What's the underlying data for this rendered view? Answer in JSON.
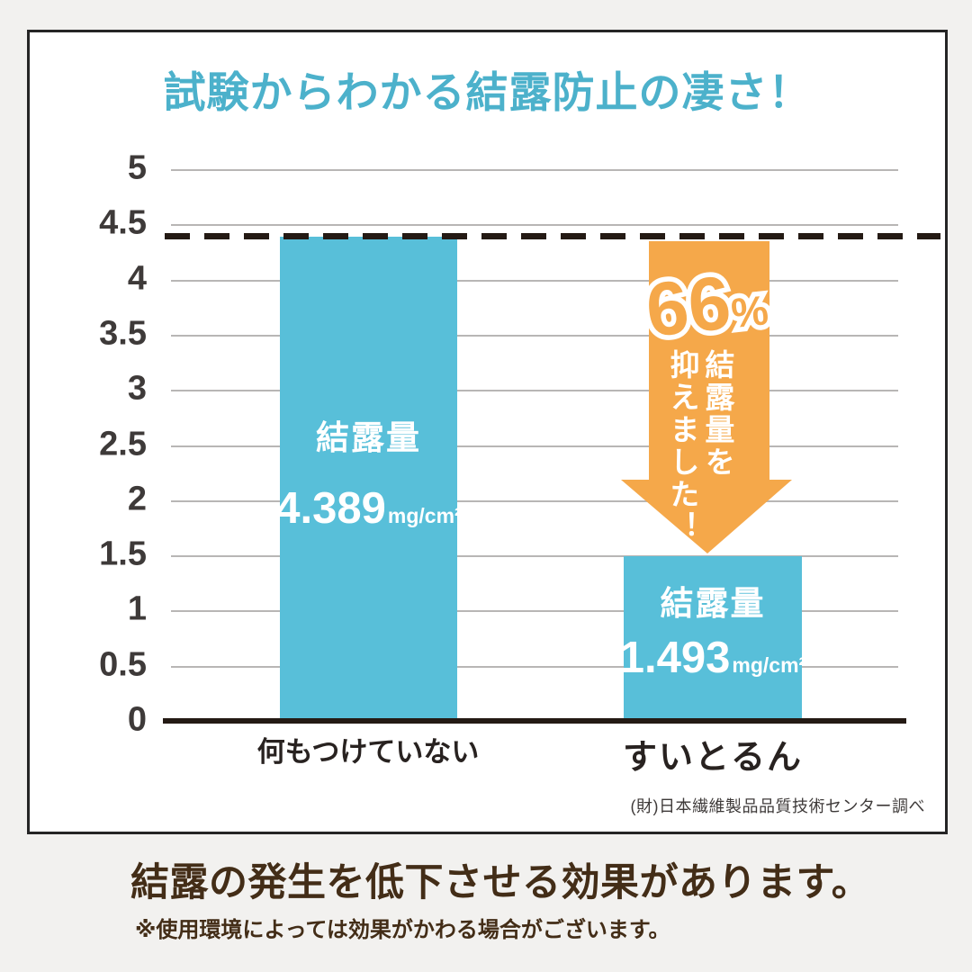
{
  "title": "試験からわかる結露防止の凄さ！",
  "chart_data": {
    "type": "bar",
    "title": "試験からわかる結露防止の凄さ！",
    "categories": [
      "何もつけていない",
      "すいとるん"
    ],
    "values": [
      4.389,
      1.493
    ],
    "bar_value_labels": [
      {
        "label": "結露量",
        "value": "4.389",
        "unit": "mg/cm²"
      },
      {
        "label": "結露量",
        "value": "1.493",
        "unit": "mg/cm²"
      }
    ],
    "ylim": [
      0,
      5
    ],
    "yticks": [
      5,
      4.5,
      4,
      3.5,
      3,
      2.5,
      2,
      1.5,
      1,
      0.5,
      0
    ],
    "ytick_labels": [
      "5",
      "4.5",
      "4",
      "3.5",
      "3",
      "2.5",
      "2",
      "1.5",
      "1",
      "0.5",
      "0"
    ],
    "grid": true,
    "legend": false,
    "reference_line": 4.389,
    "annotation": {
      "percent": "66",
      "percent_sign": "%",
      "line1": "結露量を",
      "line2": "抑えました！"
    },
    "source": "(財)日本繊維製品品質技術センター調べ"
  },
  "footer": {
    "headline": "結露の発生を低下させる効果があります。",
    "note": "※使用環境によっては効果がかわる場合がございます。"
  },
  "colors": {
    "background": "#f2f1ef",
    "card_background": "#ffffff",
    "card_border": "#252525",
    "title": "#4cb1cb",
    "bar": "#58bfd9",
    "arrow": "#f5a84a",
    "line_dark": "#241a14",
    "gridline": "#b8b6b5",
    "text_dark": "#3e3a39",
    "text_brown": "#432d17"
  }
}
